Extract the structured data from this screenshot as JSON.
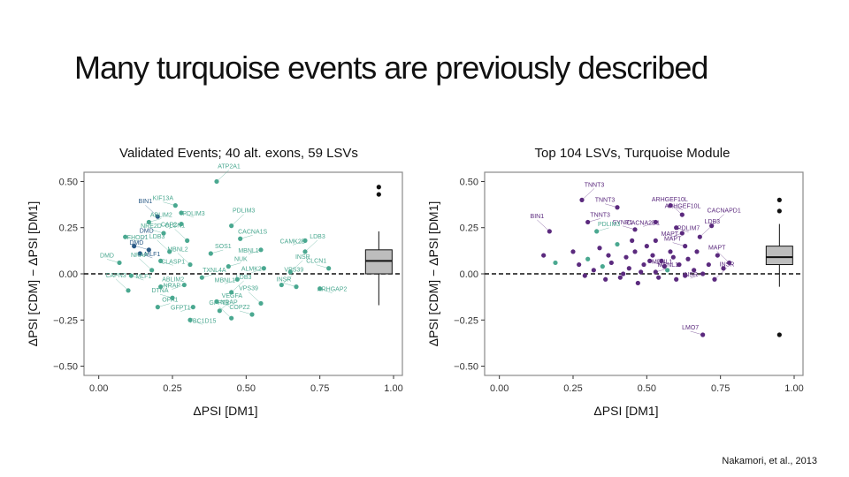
{
  "slide": {
    "title": "Many turquoise events are previously described",
    "citation": "Nakamori, et al., 2013"
  },
  "colors": {
    "teal": "#4aa890",
    "darkblue": "#2a5a86",
    "purple": "#5b2a7e",
    "box": "#bdbdbd"
  },
  "chart_data": [
    {
      "type": "scatter",
      "title": "Validated Events; 40 alt. exons, 59 LSVs",
      "xlabel": "ΔPSI [DM1]",
      "ylabel": "ΔPSI [CDM] − ΔPSI [DM1]",
      "xlim": [
        -0.05,
        1.03
      ],
      "ylim": [
        -0.55,
        0.55
      ],
      "xticks": [
        0.0,
        0.25,
        0.5,
        0.75,
        1.0
      ],
      "xtick_labels": [
        "0.00",
        "0.25",
        "0.50",
        "0.75",
        "1.00"
      ],
      "yticks": [
        0.5,
        0.25,
        0.0,
        -0.25,
        -0.5
      ],
      "ytick_labels": [
        "0.50",
        "0.25",
        "0.00",
        "−0.25",
        "−0.50"
      ],
      "reference_line_y": 0.0,
      "boxplot": {
        "x": 0.95,
        "min": -0.17,
        "q1": 0.0,
        "median": 0.07,
        "q3": 0.13,
        "max": 0.23,
        "outliers": [
          0.47,
          0.43
        ]
      },
      "points": [
        {
          "x": 0.4,
          "y": 0.5,
          "label": "ATP2A1",
          "color": "teal"
        },
        {
          "x": 0.26,
          "y": 0.37,
          "label": "KIF13A",
          "color": "teal"
        },
        {
          "x": 0.28,
          "y": 0.33,
          "label": "PDLIM3",
          "color": "teal"
        },
        {
          "x": 0.2,
          "y": 0.31,
          "label": "BIN1",
          "color": "darkblue"
        },
        {
          "x": 0.17,
          "y": 0.28,
          "label": "ABLIM2",
          "color": "teal"
        },
        {
          "x": 0.28,
          "y": 0.27,
          "label": "CAP2",
          "color": "teal"
        },
        {
          "x": 0.45,
          "y": 0.26,
          "label": "PDLIM3",
          "color": "teal"
        },
        {
          "x": 0.22,
          "y": 0.22,
          "label": "NRE2D",
          "color": "teal"
        },
        {
          "x": 0.09,
          "y": 0.2,
          "label": "FHOD1",
          "color": "teal"
        },
        {
          "x": 0.3,
          "y": 0.18,
          "label": "CLCN1",
          "color": "teal"
        },
        {
          "x": 0.48,
          "y": 0.19,
          "label": "CACNA1S",
          "color": "teal"
        },
        {
          "x": 0.7,
          "y": 0.18,
          "label": "CAMK2B",
          "color": "teal"
        },
        {
          "x": 0.12,
          "y": 0.15,
          "label": "DMD",
          "color": "darkblue"
        },
        {
          "x": 0.17,
          "y": 0.13,
          "label": "DMD",
          "color": "darkblue"
        },
        {
          "x": 0.14,
          "y": 0.11,
          "label": "MLF1",
          "color": "darkblue"
        },
        {
          "x": 0.24,
          "y": 0.12,
          "label": "LDB3",
          "color": "teal"
        },
        {
          "x": 0.38,
          "y": 0.11,
          "label": "SOS1",
          "color": "teal"
        },
        {
          "x": 0.55,
          "y": 0.13,
          "label": "MBNL1",
          "color": "teal"
        },
        {
          "x": 0.7,
          "y": 0.12,
          "label": "LDB3",
          "color": "teal"
        },
        {
          "x": 0.07,
          "y": 0.06,
          "label": "DMD",
          "color": "teal"
        },
        {
          "x": 0.21,
          "y": 0.07,
          "label": "CLASP1",
          "color": "teal"
        },
        {
          "x": 0.31,
          "y": 0.05,
          "label": "MBNL2",
          "color": "teal"
        },
        {
          "x": 0.44,
          "y": 0.04,
          "label": "NUK",
          "color": "teal"
        },
        {
          "x": 0.56,
          "y": 0.03,
          "label": "ALMK2",
          "color": "teal"
        },
        {
          "x": 0.65,
          "y": 0.01,
          "label": "INSR",
          "color": "teal"
        },
        {
          "x": 0.78,
          "y": 0.03,
          "label": "CLCN1",
          "color": "teal"
        },
        {
          "x": 0.11,
          "y": -0.01,
          "label": "MLF1",
          "color": "teal"
        },
        {
          "x": 0.18,
          "y": 0.02,
          "label": "NRAP",
          "color": "teal"
        },
        {
          "x": 0.35,
          "y": -0.02,
          "label": "TXNL4A",
          "color": "teal"
        },
        {
          "x": 0.47,
          "y": -0.03,
          "label": "MBNL1",
          "color": "teal"
        },
        {
          "x": 0.62,
          "y": -0.06,
          "label": "VPS39",
          "color": "teal"
        },
        {
          "x": 0.67,
          "y": -0.07,
          "label": "INSR",
          "color": "teal"
        },
        {
          "x": 0.75,
          "y": -0.08,
          "label": "ARHGAP2",
          "color": "teal"
        },
        {
          "x": 0.1,
          "y": -0.09,
          "label": "CAPN3",
          "color": "teal"
        },
        {
          "x": 0.21,
          "y": -0.07,
          "label": "ABLIM2",
          "color": "teal"
        },
        {
          "x": 0.29,
          "y": -0.06,
          "label": "NRAP",
          "color": "teal"
        },
        {
          "x": 0.45,
          "y": -0.1,
          "label": "LDB3",
          "color": "teal"
        },
        {
          "x": 0.25,
          "y": -0.13,
          "label": "DTNA",
          "color": "teal"
        },
        {
          "x": 0.4,
          "y": -0.15,
          "label": "NRAP",
          "color": "teal"
        },
        {
          "x": 0.55,
          "y": -0.16,
          "label": "VPS39",
          "color": "teal"
        },
        {
          "x": 0.2,
          "y": -0.18,
          "label": "OPA1",
          "color": "teal"
        },
        {
          "x": 0.32,
          "y": -0.18,
          "label": "GFPT1",
          "color": "teal"
        },
        {
          "x": 0.41,
          "y": -0.2,
          "label": "VEGFA",
          "color": "teal"
        },
        {
          "x": 0.52,
          "y": -0.22,
          "label": "COPZ2",
          "color": "teal"
        },
        {
          "x": 0.31,
          "y": -0.25,
          "label": "TBC1D15",
          "color": "teal"
        },
        {
          "x": 0.45,
          "y": -0.24,
          "label": "GFPT1",
          "color": "teal"
        }
      ]
    },
    {
      "type": "scatter",
      "title": "Top 104 LSVs, Turquoise Module",
      "xlabel": "ΔPSI [DM1]",
      "ylabel": "ΔPSI [CDM] − ΔPSI [DM1]",
      "xlim": [
        -0.05,
        1.03
      ],
      "ylim": [
        -0.55,
        0.55
      ],
      "xticks": [
        0.0,
        0.25,
        0.5,
        0.75,
        1.0
      ],
      "xtick_labels": [
        "0.00",
        "0.25",
        "0.50",
        "0.75",
        "1.00"
      ],
      "yticks": [
        0.5,
        0.25,
        0.0,
        -0.25,
        -0.5
      ],
      "ytick_labels": [
        "0.50",
        "0.25",
        "0.00",
        "−0.25",
        "−0.50"
      ],
      "reference_line_y": 0.0,
      "boxplot": {
        "x": 0.95,
        "min": -0.07,
        "q1": 0.05,
        "median": 0.09,
        "q3": 0.15,
        "max": 0.27,
        "outliers": [
          0.4,
          0.34,
          -0.33
        ]
      },
      "labeled_points": [
        {
          "x": 0.28,
          "y": 0.4,
          "label": "TNNT3",
          "color": "purple"
        },
        {
          "x": 0.4,
          "y": 0.36,
          "label": "TNNT3",
          "color": "purple"
        },
        {
          "x": 0.58,
          "y": 0.37,
          "label": "ARHGEF10L",
          "color": "purple"
        },
        {
          "x": 0.62,
          "y": 0.32,
          "label": "ARHGEF10L",
          "color": "purple"
        },
        {
          "x": 0.3,
          "y": 0.28,
          "label": "TNNT3",
          "color": "purple"
        },
        {
          "x": 0.53,
          "y": 0.28,
          "label": "CACNA2D1",
          "color": "purple"
        },
        {
          "x": 0.72,
          "y": 0.26,
          "label": "CACNAPD1",
          "color": "purple"
        },
        {
          "x": 0.46,
          "y": 0.24,
          "label": "SYNE1",
          "color": "purple"
        },
        {
          "x": 0.6,
          "y": 0.25,
          "label": "PDLIM7",
          "color": "purple"
        },
        {
          "x": 0.17,
          "y": 0.23,
          "label": "BIN1",
          "color": "purple"
        },
        {
          "x": 0.33,
          "y": 0.23,
          "label": "PDLIM3",
          "color": "teal"
        },
        {
          "x": 0.62,
          "y": 0.22,
          "label": "MAPT",
          "color": "purple"
        },
        {
          "x": 0.68,
          "y": 0.2,
          "label": "LDB3",
          "color": "purple"
        },
        {
          "x": 0.63,
          "y": 0.15,
          "label": "MAPT",
          "color": "purple"
        },
        {
          "x": 0.51,
          "y": 0.07,
          "label": "MBNL1",
          "color": "purple"
        },
        {
          "x": 0.78,
          "y": 0.06,
          "label": "MAPT",
          "color": "purple"
        },
        {
          "x": 0.53,
          "y": 0.01,
          "label": "MBNL1",
          "color": "purple"
        },
        {
          "x": 0.69,
          "y": 0.0,
          "label": "INSR",
          "color": "purple"
        },
        {
          "x": 0.73,
          "y": -0.03,
          "label": "INSR",
          "color": "purple"
        },
        {
          "x": 0.69,
          "y": -0.33,
          "label": "LMO7",
          "color": "purple"
        }
      ],
      "unlabeled_points": [
        {
          "x": 0.15,
          "y": 0.1,
          "color": "purple"
        },
        {
          "x": 0.19,
          "y": 0.06,
          "color": "teal"
        },
        {
          "x": 0.25,
          "y": 0.12,
          "color": "purple"
        },
        {
          "x": 0.27,
          "y": 0.05,
          "color": "purple"
        },
        {
          "x": 0.3,
          "y": 0.08,
          "color": "teal"
        },
        {
          "x": 0.32,
          "y": 0.02,
          "color": "purple"
        },
        {
          "x": 0.34,
          "y": 0.14,
          "color": "purple"
        },
        {
          "x": 0.36,
          "y": -0.03,
          "color": "purple"
        },
        {
          "x": 0.38,
          "y": 0.06,
          "color": "purple"
        },
        {
          "x": 0.4,
          "y": 0.16,
          "color": "teal"
        },
        {
          "x": 0.41,
          "y": -0.02,
          "color": "purple"
        },
        {
          "x": 0.43,
          "y": 0.09,
          "color": "purple"
        },
        {
          "x": 0.44,
          "y": 0.03,
          "color": "purple"
        },
        {
          "x": 0.46,
          "y": 0.12,
          "color": "purple"
        },
        {
          "x": 0.47,
          "y": -0.05,
          "color": "purple"
        },
        {
          "x": 0.49,
          "y": 0.05,
          "color": "purple"
        },
        {
          "x": 0.5,
          "y": 0.15,
          "color": "purple"
        },
        {
          "x": 0.52,
          "y": 0.1,
          "color": "purple"
        },
        {
          "x": 0.54,
          "y": -0.02,
          "color": "purple"
        },
        {
          "x": 0.55,
          "y": 0.07,
          "color": "purple"
        },
        {
          "x": 0.57,
          "y": 0.02,
          "color": "teal"
        },
        {
          "x": 0.58,
          "y": 0.12,
          "color": "purple"
        },
        {
          "x": 0.6,
          "y": -0.03,
          "color": "purple"
        },
        {
          "x": 0.61,
          "y": 0.05,
          "color": "purple"
        },
        {
          "x": 0.64,
          "y": 0.08,
          "color": "purple"
        },
        {
          "x": 0.66,
          "y": 0.02,
          "color": "purple"
        },
        {
          "x": 0.67,
          "y": 0.12,
          "color": "purple"
        },
        {
          "x": 0.71,
          "y": 0.05,
          "color": "purple"
        },
        {
          "x": 0.74,
          "y": 0.1,
          "color": "purple"
        },
        {
          "x": 0.76,
          "y": 0.03,
          "color": "purple"
        },
        {
          "x": 0.37,
          "y": 0.1,
          "color": "purple"
        },
        {
          "x": 0.42,
          "y": 0.0,
          "color": "purple"
        },
        {
          "x": 0.45,
          "y": 0.18,
          "color": "purple"
        },
        {
          "x": 0.48,
          "y": 0.01,
          "color": "purple"
        },
        {
          "x": 0.53,
          "y": 0.18,
          "color": "purple"
        },
        {
          "x": 0.56,
          "y": 0.04,
          "color": "purple"
        },
        {
          "x": 0.59,
          "y": 0.09,
          "color": "purple"
        },
        {
          "x": 0.63,
          "y": -0.01,
          "color": "purple"
        },
        {
          "x": 0.35,
          "y": 0.04,
          "color": "teal"
        },
        {
          "x": 0.29,
          "y": -0.01,
          "color": "purple"
        }
      ]
    }
  ]
}
